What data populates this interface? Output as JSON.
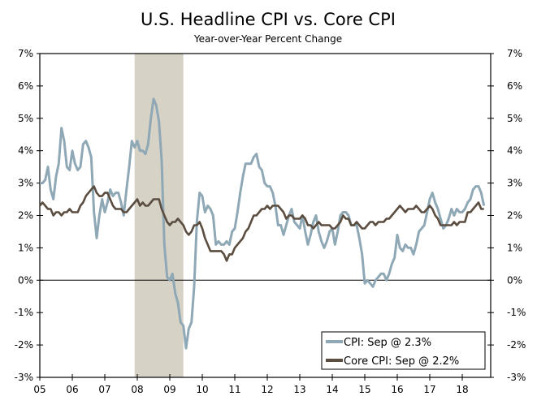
{
  "chart_data": {
    "type": "line",
    "title": "U.S. Headline CPI vs. Core CPI",
    "subtitle": "Year-over-Year Percent Change",
    "xlabel": "",
    "ylabel": "",
    "ylim": [
      -3,
      7
    ],
    "y_ticks": [
      "7%",
      "6%",
      "5%",
      "4%",
      "3%",
      "2%",
      "1%",
      "0%",
      "-1%",
      "-2%",
      "-3%"
    ],
    "y_tick_values": [
      7,
      6,
      5,
      4,
      3,
      2,
      1,
      0,
      -1,
      -2,
      -3
    ],
    "x_tick_labels": [
      "05",
      "06",
      "07",
      "08",
      "09",
      "10",
      "11",
      "12",
      "13",
      "14",
      "15",
      "16",
      "17",
      "18"
    ],
    "x_range": [
      "2005-01",
      "2018-09"
    ],
    "grid": false,
    "zero_line": true,
    "dual_y_axis_labels": true,
    "shaded_region": {
      "from": "2007-12",
      "to": "2009-06",
      "color": "#d6d2c6"
    },
    "legend": {
      "placement": "bottom-right"
    },
    "x": [
      "2005-01",
      "2005-02",
      "2005-03",
      "2005-04",
      "2005-05",
      "2005-06",
      "2005-07",
      "2005-08",
      "2005-09",
      "2005-10",
      "2005-11",
      "2005-12",
      "2006-01",
      "2006-02",
      "2006-03",
      "2006-04",
      "2006-05",
      "2006-06",
      "2006-07",
      "2006-08",
      "2006-09",
      "2006-10",
      "2006-11",
      "2006-12",
      "2007-01",
      "2007-02",
      "2007-03",
      "2007-04",
      "2007-05",
      "2007-06",
      "2007-07",
      "2007-08",
      "2007-09",
      "2007-10",
      "2007-11",
      "2007-12",
      "2008-01",
      "2008-02",
      "2008-03",
      "2008-04",
      "2008-05",
      "2008-06",
      "2008-07",
      "2008-08",
      "2008-09",
      "2008-10",
      "2008-11",
      "2008-12",
      "2009-01",
      "2009-02",
      "2009-03",
      "2009-04",
      "2009-05",
      "2009-06",
      "2009-07",
      "2009-08",
      "2009-09",
      "2009-10",
      "2009-11",
      "2009-12",
      "2010-01",
      "2010-02",
      "2010-03",
      "2010-04",
      "2010-05",
      "2010-06",
      "2010-07",
      "2010-08",
      "2010-09",
      "2010-10",
      "2010-11",
      "2010-12",
      "2011-01",
      "2011-02",
      "2011-03",
      "2011-04",
      "2011-05",
      "2011-06",
      "2011-07",
      "2011-08",
      "2011-09",
      "2011-10",
      "2011-11",
      "2011-12",
      "2012-01",
      "2012-02",
      "2012-03",
      "2012-04",
      "2012-05",
      "2012-06",
      "2012-07",
      "2012-08",
      "2012-09",
      "2012-10",
      "2012-11",
      "2012-12",
      "2013-01",
      "2013-02",
      "2013-03",
      "2013-04",
      "2013-05",
      "2013-06",
      "2013-07",
      "2013-08",
      "2013-09",
      "2013-10",
      "2013-11",
      "2013-12",
      "2014-01",
      "2014-02",
      "2014-03",
      "2014-04",
      "2014-05",
      "2014-06",
      "2014-07",
      "2014-08",
      "2014-09",
      "2014-10",
      "2014-11",
      "2014-12",
      "2015-01",
      "2015-02",
      "2015-03",
      "2015-04",
      "2015-05",
      "2015-06",
      "2015-07",
      "2015-08",
      "2015-09",
      "2015-10",
      "2015-11",
      "2015-12",
      "2016-01",
      "2016-02",
      "2016-03",
      "2016-04",
      "2016-05",
      "2016-06",
      "2016-07",
      "2016-08",
      "2016-09",
      "2016-10",
      "2016-11",
      "2016-12",
      "2017-01",
      "2017-02",
      "2017-03",
      "2017-04",
      "2017-05",
      "2017-06",
      "2017-07",
      "2017-08",
      "2017-09",
      "2017-10",
      "2017-11",
      "2017-12",
      "2018-01",
      "2018-02",
      "2018-03",
      "2018-04",
      "2018-05",
      "2018-06",
      "2018-07",
      "2018-08",
      "2018-09"
    ],
    "series": [
      {
        "name": "CPI: Sep @ 2.3%",
        "color": "#8fa8b6",
        "values": [
          3.0,
          3.0,
          3.1,
          3.5,
          2.8,
          2.5,
          3.2,
          3.6,
          4.7,
          4.3,
          3.5,
          3.4,
          4.0,
          3.6,
          3.4,
          3.5,
          4.2,
          4.3,
          4.1,
          3.8,
          2.1,
          1.3,
          2.0,
          2.5,
          2.1,
          2.4,
          2.8,
          2.6,
          2.7,
          2.7,
          2.4,
          2.0,
          2.8,
          3.5,
          4.3,
          4.1,
          4.3,
          4.0,
          4.0,
          3.9,
          4.2,
          5.0,
          5.6,
          5.4,
          4.9,
          3.7,
          1.1,
          0.1,
          0.0,
          0.2,
          -0.4,
          -0.7,
          -1.3,
          -1.4,
          -2.1,
          -1.5,
          -1.3,
          -0.2,
          1.8,
          2.7,
          2.6,
          2.1,
          2.3,
          2.2,
          2.0,
          1.1,
          1.2,
          1.1,
          1.1,
          1.2,
          1.1,
          1.5,
          1.6,
          2.1,
          2.7,
          3.2,
          3.6,
          3.6,
          3.6,
          3.8,
          3.9,
          3.5,
          3.4,
          3.0,
          2.9,
          2.9,
          2.7,
          2.3,
          1.7,
          1.7,
          1.4,
          1.7,
          2.0,
          2.2,
          1.8,
          1.7,
          1.6,
          2.0,
          1.5,
          1.1,
          1.4,
          1.8,
          2.0,
          1.5,
          1.2,
          1.0,
          1.2,
          1.5,
          1.6,
          1.1,
          1.5,
          2.0,
          2.1,
          2.1,
          2.0,
          1.7,
          1.7,
          1.7,
          1.3,
          0.8,
          -0.1,
          0.0,
          -0.1,
          -0.2,
          0.0,
          0.1,
          0.2,
          0.2,
          0.0,
          0.2,
          0.5,
          0.7,
          1.4,
          1.0,
          0.9,
          1.1,
          1.0,
          1.0,
          0.8,
          1.1,
          1.5,
          1.6,
          1.7,
          2.1,
          2.5,
          2.7,
          2.4,
          2.2,
          1.9,
          1.6,
          1.7,
          1.9,
          2.2,
          2.0,
          2.2,
          2.1,
          2.1,
          2.2,
          2.4,
          2.5,
          2.8,
          2.9,
          2.9,
          2.7,
          2.3
        ]
      },
      {
        "name": "Core CPI: Sep @ 2.2%",
        "color": "#5b4d40",
        "values": [
          2.3,
          2.4,
          2.3,
          2.2,
          2.2,
          2.0,
          2.1,
          2.1,
          2.0,
          2.1,
          2.1,
          2.2,
          2.1,
          2.1,
          2.1,
          2.3,
          2.4,
          2.6,
          2.7,
          2.8,
          2.9,
          2.7,
          2.6,
          2.6,
          2.7,
          2.7,
          2.5,
          2.3,
          2.2,
          2.2,
          2.2,
          2.1,
          2.1,
          2.2,
          2.3,
          2.4,
          2.5,
          2.3,
          2.4,
          2.3,
          2.3,
          2.4,
          2.5,
          2.5,
          2.5,
          2.2,
          2.0,
          1.8,
          1.7,
          1.8,
          1.8,
          1.9,
          1.8,
          1.7,
          1.5,
          1.4,
          1.5,
          1.7,
          1.7,
          1.8,
          1.6,
          1.3,
          1.1,
          0.9,
          0.9,
          0.9,
          0.9,
          0.9,
          0.8,
          0.6,
          0.8,
          0.8,
          1.0,
          1.1,
          1.2,
          1.3,
          1.5,
          1.6,
          1.8,
          2.0,
          2.0,
          2.1,
          2.2,
          2.2,
          2.3,
          2.2,
          2.3,
          2.3,
          2.3,
          2.2,
          2.1,
          1.9,
          2.0,
          2.0,
          1.9,
          1.9,
          1.9,
          2.0,
          1.9,
          1.7,
          1.7,
          1.6,
          1.7,
          1.8,
          1.7,
          1.7,
          1.7,
          1.7,
          1.6,
          1.6,
          1.7,
          1.8,
          2.0,
          1.9,
          1.9,
          1.7,
          1.7,
          1.8,
          1.7,
          1.6,
          1.6,
          1.7,
          1.8,
          1.8,
          1.7,
          1.8,
          1.8,
          1.8,
          1.9,
          1.9,
          2.0,
          2.1,
          2.2,
          2.3,
          2.2,
          2.1,
          2.2,
          2.2,
          2.2,
          2.3,
          2.2,
          2.1,
          2.1,
          2.2,
          2.3,
          2.2,
          2.0,
          1.9,
          1.7,
          1.7,
          1.7,
          1.7,
          1.7,
          1.8,
          1.7,
          1.8,
          1.8,
          1.8,
          2.1,
          2.1,
          2.2,
          2.3,
          2.4,
          2.2,
          2.2
        ]
      }
    ]
  }
}
